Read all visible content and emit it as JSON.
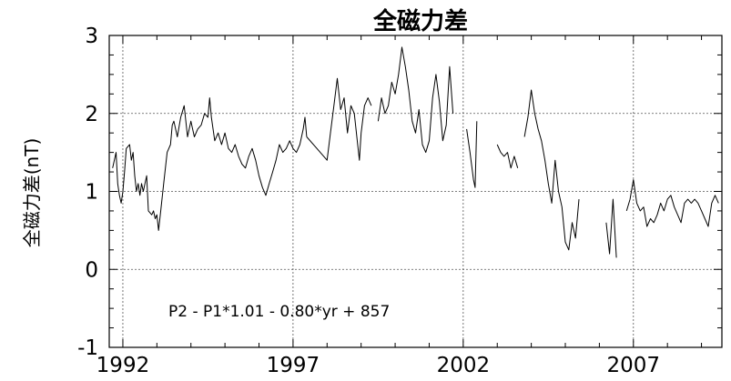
{
  "chart_data": {
    "type": "line",
    "title": "全磁力差",
    "ylabel": "全磁力差(nT)",
    "xlabel": "",
    "annotation": "P2 - P1*1.01 - 0.80*yr + 857",
    "xlim": [
      1991.6,
      2009.6
    ],
    "ylim": [
      -1,
      3
    ],
    "x_ticks": [
      1992,
      1997,
      2002,
      2007
    ],
    "y_ticks": [
      -1,
      0,
      1,
      2,
      3
    ],
    "grid": true,
    "series_color": "#000000",
    "segments": [
      [
        [
          1991.7,
          1.3
        ],
        [
          1991.8,
          1.5
        ],
        [
          1991.85,
          1.1
        ],
        [
          1991.9,
          0.95
        ],
        [
          1991.95,
          0.85
        ],
        [
          1992.0,
          1.0
        ],
        [
          1992.05,
          1.25
        ],
        [
          1992.1,
          1.55
        ],
        [
          1992.2,
          1.6
        ],
        [
          1992.25,
          1.4
        ],
        [
          1992.3,
          1.5
        ],
        [
          1992.35,
          1.2
        ],
        [
          1992.4,
          1.0
        ],
        [
          1992.45,
          1.1
        ],
        [
          1992.5,
          0.95
        ],
        [
          1992.55,
          1.1
        ],
        [
          1992.6,
          1.0
        ],
        [
          1992.7,
          1.2
        ],
        [
          1992.75,
          0.75
        ],
        [
          1992.85,
          0.7
        ],
        [
          1992.9,
          0.75
        ],
        [
          1992.95,
          0.65
        ],
        [
          1993.0,
          0.7
        ],
        [
          1993.05,
          0.5
        ],
        [
          1993.1,
          0.7
        ],
        [
          1993.2,
          1.1
        ],
        [
          1993.3,
          1.5
        ],
        [
          1993.4,
          1.6
        ],
        [
          1993.45,
          1.85
        ],
        [
          1993.5,
          1.9
        ],
        [
          1993.6,
          1.7
        ],
        [
          1993.7,
          1.95
        ],
        [
          1993.8,
          2.1
        ],
        [
          1993.9,
          1.7
        ],
        [
          1994.0,
          1.9
        ],
        [
          1994.1,
          1.7
        ],
        [
          1994.2,
          1.8
        ],
        [
          1994.3,
          1.85
        ],
        [
          1994.4,
          2.0
        ],
        [
          1994.5,
          1.95
        ],
        [
          1994.55,
          2.2
        ],
        [
          1994.6,
          1.95
        ],
        [
          1994.7,
          1.65
        ],
        [
          1994.8,
          1.75
        ],
        [
          1994.9,
          1.6
        ],
        [
          1995.0,
          1.75
        ],
        [
          1995.1,
          1.55
        ],
        [
          1995.2,
          1.5
        ],
        [
          1995.3,
          1.6
        ],
        [
          1995.4,
          1.45
        ],
        [
          1995.5,
          1.35
        ],
        [
          1995.6,
          1.3
        ],
        [
          1995.7,
          1.45
        ],
        [
          1995.8,
          1.55
        ],
        [
          1995.9,
          1.4
        ],
        [
          1996.0,
          1.2
        ],
        [
          1996.1,
          1.05
        ],
        [
          1996.2,
          0.95
        ],
        [
          1996.3,
          1.1
        ],
        [
          1996.4,
          1.25
        ],
        [
          1996.5,
          1.4
        ],
        [
          1996.6,
          1.6
        ],
        [
          1996.7,
          1.5
        ],
        [
          1996.8,
          1.55
        ],
        [
          1996.9,
          1.65
        ],
        [
          1997.0,
          1.55
        ],
        [
          1997.1,
          1.5
        ],
        [
          1997.2,
          1.6
        ],
        [
          1997.3,
          1.8
        ],
        [
          1997.35,
          1.95
        ],
        [
          1997.4,
          1.7
        ]
      ],
      [
        [
          1997.4,
          1.7
        ],
        [
          1997.7,
          1.55
        ],
        [
          1998.0,
          1.4
        ],
        [
          1998.1,
          1.75
        ],
        [
          1998.2,
          2.1
        ],
        [
          1998.3,
          2.45
        ],
        [
          1998.4,
          2.05
        ],
        [
          1998.5,
          2.2
        ],
        [
          1998.6,
          1.75
        ],
        [
          1998.7,
          2.1
        ],
        [
          1998.8,
          2.0
        ],
        [
          1998.9,
          1.6
        ],
        [
          1998.95,
          1.4
        ],
        [
          1999.0,
          1.75
        ],
        [
          1999.1,
          2.1
        ],
        [
          1999.2,
          2.2
        ],
        [
          1999.3,
          2.1
        ]
      ],
      [
        [
          1999.5,
          1.9
        ],
        [
          1999.6,
          2.2
        ],
        [
          1999.7,
          2.0
        ],
        [
          1999.8,
          2.1
        ],
        [
          1999.9,
          2.4
        ],
        [
          2000.0,
          2.25
        ],
        [
          2000.1,
          2.5
        ],
        [
          2000.2,
          2.85
        ],
        [
          2000.3,
          2.6
        ],
        [
          2000.4,
          2.3
        ],
        [
          2000.5,
          1.9
        ],
        [
          2000.6,
          1.75
        ],
        [
          2000.7,
          2.05
        ],
        [
          2000.8,
          1.6
        ],
        [
          2000.9,
          1.5
        ],
        [
          2001.0,
          1.65
        ],
        [
          2001.1,
          2.2
        ],
        [
          2001.2,
          2.5
        ],
        [
          2001.3,
          2.15
        ],
        [
          2001.4,
          1.65
        ],
        [
          2001.5,
          1.85
        ],
        [
          2001.6,
          2.6
        ],
        [
          2001.7,
          2.0
        ]
      ],
      [
        [
          2002.1,
          1.8
        ],
        [
          2002.2,
          1.5
        ],
        [
          2002.3,
          1.15
        ],
        [
          2002.35,
          1.05
        ],
        [
          2002.4,
          1.9
        ]
      ],
      [
        [
          2003.0,
          1.6
        ],
        [
          2003.1,
          1.5
        ],
        [
          2003.2,
          1.45
        ],
        [
          2003.3,
          1.5
        ],
        [
          2003.4,
          1.3
        ],
        [
          2003.5,
          1.45
        ],
        [
          2003.6,
          1.3
        ]
      ],
      [
        [
          2003.8,
          1.7
        ],
        [
          2003.9,
          1.95
        ],
        [
          2004.0,
          2.3
        ],
        [
          2004.1,
          2.0
        ],
        [
          2004.2,
          1.8
        ],
        [
          2004.3,
          1.65
        ],
        [
          2004.4,
          1.4
        ],
        [
          2004.5,
          1.1
        ],
        [
          2004.6,
          0.85
        ],
        [
          2004.7,
          1.4
        ],
        [
          2004.8,
          1.0
        ],
        [
          2004.9,
          0.8
        ],
        [
          2005.0,
          0.35
        ],
        [
          2005.1,
          0.25
        ],
        [
          2005.2,
          0.6
        ],
        [
          2005.3,
          0.4
        ],
        [
          2005.4,
          0.9
        ]
      ],
      [
        [
          2006.2,
          0.6
        ],
        [
          2006.3,
          0.2
        ],
        [
          2006.4,
          0.9
        ],
        [
          2006.5,
          0.15
        ]
      ],
      [
        [
          2006.8,
          0.75
        ],
        [
          2006.9,
          0.9
        ],
        [
          2007.0,
          1.15
        ],
        [
          2007.1,
          0.85
        ],
        [
          2007.2,
          0.75
        ],
        [
          2007.3,
          0.8
        ],
        [
          2007.4,
          0.55
        ],
        [
          2007.5,
          0.65
        ],
        [
          2007.6,
          0.6
        ],
        [
          2007.7,
          0.7
        ],
        [
          2007.8,
          0.85
        ],
        [
          2007.9,
          0.75
        ],
        [
          2008.0,
          0.9
        ],
        [
          2008.1,
          0.95
        ],
        [
          2008.2,
          0.8
        ],
        [
          2008.3,
          0.7
        ],
        [
          2008.4,
          0.6
        ],
        [
          2008.5,
          0.85
        ],
        [
          2008.6,
          0.9
        ],
        [
          2008.7,
          0.85
        ],
        [
          2008.8,
          0.9
        ],
        [
          2008.9,
          0.85
        ],
        [
          2009.0,
          0.75
        ],
        [
          2009.1,
          0.65
        ],
        [
          2009.2,
          0.55
        ],
        [
          2009.3,
          0.85
        ],
        [
          2009.4,
          0.95
        ],
        [
          2009.5,
          0.85
        ]
      ]
    ]
  }
}
